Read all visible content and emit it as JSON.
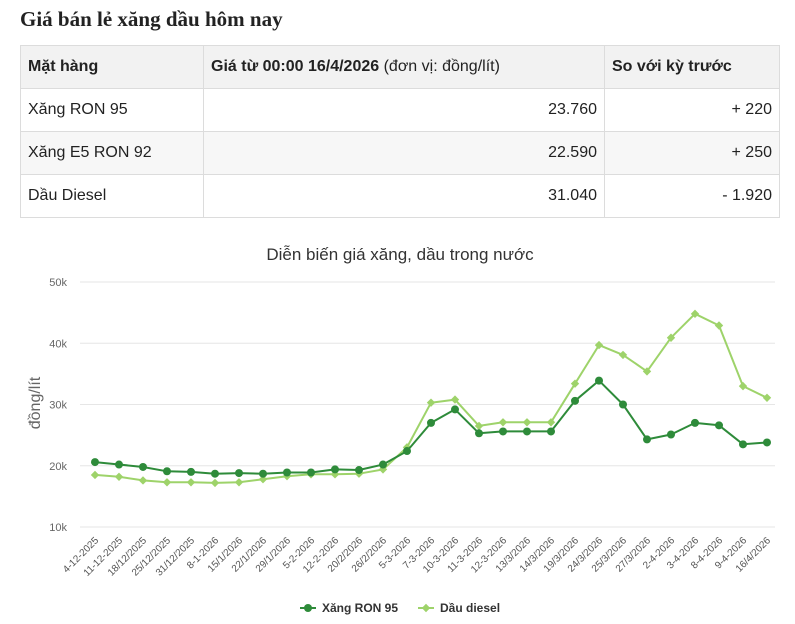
{
  "page": {
    "title": "Giá bán lẻ xăng dầu hôm nay"
  },
  "table": {
    "headers": {
      "item": "Mặt hàng",
      "price_bold": "Giá từ 00:00 16/4/2026",
      "price_unit": " (đơn vị: đồng/lít)",
      "change": "So với kỳ trước"
    },
    "rows": [
      {
        "item": "Xăng RON 95",
        "price": "23.760",
        "change": "+ 220"
      },
      {
        "item": "Xăng E5 RON 92",
        "price": "22.590",
        "change": "+ 250"
      },
      {
        "item": "Dầu Diesel",
        "price": "31.040",
        "change": "- 1.920"
      }
    ]
  },
  "chart_data": {
    "type": "line",
    "title": "Diễn biến giá xăng, dầu trong nước",
    "ylabel": "đồng/lít",
    "xlabel": "",
    "ylim": [
      10000,
      50000
    ],
    "yticks": [
      10000,
      20000,
      30000,
      40000,
      50000
    ],
    "ytick_labels": [
      "10k",
      "20k",
      "30k",
      "40k",
      "50k"
    ],
    "grid": true,
    "legend": "bottom",
    "categories": [
      "4-12-2025",
      "11-12-2025",
      "18/12/2025",
      "25/12/2025",
      "31/12/2025",
      "8-1-2026",
      "15/1/2026",
      "22/1/2026",
      "29/1/2026",
      "5-2-2026",
      "12-2-2026",
      "20/2/2026",
      "26/2/2026",
      "5-3-2026",
      "7-3-2026",
      "10-3-2026",
      "11-3-2026",
      "12-3-2026",
      "13/3/2026",
      "14/3/2026",
      "19/3/2026",
      "24/3/2026",
      "25/3/2026",
      "27/3/2026",
      "2-4-2026",
      "3-4-2026",
      "8-4-2026",
      "9-4-2026",
      "16/4/2026"
    ],
    "series": [
      {
        "name": "Xăng RON 95",
        "color": "#2e8b3a",
        "values": [
          20600,
          20200,
          19800,
          19100,
          19000,
          18700,
          18800,
          18700,
          18900,
          18900,
          19400,
          19300,
          20200,
          22400,
          27000,
          29200,
          25300,
          25600,
          25600,
          25600,
          30600,
          33900,
          30000,
          24300,
          25100,
          27000,
          26600,
          23500,
          23800
        ]
      },
      {
        "name": "Dầu diesel",
        "color": "#9ed36a",
        "values": [
          18500,
          18200,
          17600,
          17300,
          17300,
          17200,
          17300,
          17800,
          18300,
          18600,
          18600,
          18700,
          19400,
          23000,
          30300,
          30800,
          26500,
          27100,
          27100,
          27100,
          33400,
          39700,
          38100,
          35400,
          40900,
          44800,
          42900,
          33000,
          31100
        ]
      }
    ]
  }
}
